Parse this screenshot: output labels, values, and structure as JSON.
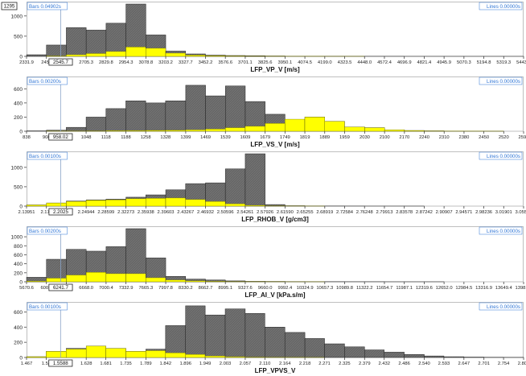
{
  "colors": {
    "bar_total": "#666666",
    "bar_highlight": "#ffff00",
    "info_text": "#2e75d6",
    "frame": "#bfbfbf",
    "cursor_line": "#8aa4c8"
  },
  "chart_data": [
    {
      "type": "bar",
      "title": "LFP_VP_V [m/s]",
      "xlabel": "LFP_VP_V [m/s]",
      "bars_label": "Bars 0.04902s",
      "lines_label": "Lines 0.00000s",
      "cursor_label": "2545.7",
      "cursor_x": 2545.7,
      "count_label": "1295",
      "yticks": [
        "0",
        "500",
        "1000"
      ],
      "ylim": [
        0,
        1295
      ],
      "xlim": [
        2331.9,
        5443.7
      ],
      "xticks": [
        "2331.9",
        "2456",
        "2705.3",
        "2829.8",
        "2954.3",
        "3078.8",
        "3203.2",
        "3327.7",
        "3452.2",
        "3576.6",
        "3701.1",
        "3825.6",
        "3950.1",
        "4074.5",
        "4199.0",
        "4323.5",
        "4448.0",
        "4572.4",
        "4696.9",
        "4821.4",
        "4945.9",
        "5070.3",
        "5194.8",
        "5319.3",
        "5443.7"
      ],
      "tick_values": [
        2331.9,
        2456.3,
        2705.3,
        2829.8,
        2954.3,
        3078.8,
        3203.2,
        3327.7,
        3452.2,
        3576.6,
        3701.1,
        3825.6,
        3950.1,
        4074.5,
        4199.0,
        4323.5,
        4448.0,
        4572.4,
        4696.9,
        4821.4,
        4945.9,
        5070.3,
        5194.8,
        5319.3,
        5443.7
      ],
      "bin_edges": [
        2331.9,
        2456.3,
        2580.8,
        2705.3,
        2829.8,
        2954.3,
        3078.8,
        3203.2,
        3327.7,
        3452.2,
        3576.6,
        3701.1,
        3825.6,
        3950.1,
        4074.5,
        4199.0,
        4323.5,
        4448.0,
        4572.4,
        4696.9,
        4821.4,
        4945.9,
        5070.3,
        5194.8,
        5319.3,
        5443.7
      ],
      "series": [
        {
          "name": "",
          "values": [
            40,
            280,
            710,
            650,
            820,
            1295,
            530,
            130,
            60,
            30,
            20,
            15,
            10,
            5,
            5,
            4,
            3,
            2,
            2,
            1,
            1,
            1,
            1,
            1,
            1
          ]
        },
        {
          "name": "",
          "values": [
            0,
            10,
            40,
            70,
            120,
            230,
            200,
            80,
            30,
            15,
            10,
            5,
            4,
            2,
            2,
            1,
            1,
            0,
            0,
            0,
            0,
            0,
            0,
            0,
            0
          ]
        }
      ]
    },
    {
      "type": "bar",
      "title": "LFP_VS_V [m/s]",
      "xlabel": "LFP_VS_V [m/s]",
      "bars_label": "Bars 0.00200s",
      "lines_label": "Lines 0.00000s",
      "cursor_label": "958.02",
      "cursor_x": 958.02,
      "yticks": [
        "0",
        "200",
        "400",
        "600"
      ],
      "ylim": [
        0,
        740
      ],
      "xlim": [
        838,
        2590
      ],
      "xticks": [
        "838",
        "908",
        "1048",
        "1118",
        "1188",
        "1258",
        "1328",
        "1399",
        "1469",
        "1539",
        "1609",
        "1679",
        "1749",
        "1819",
        "1889",
        "1959",
        "2030",
        "2100",
        "2170",
        "2240",
        "2310",
        "2380",
        "2450",
        "2520",
        "2590"
      ],
      "tick_values": [
        838,
        908,
        1048,
        1118,
        1188,
        1258,
        1328,
        1399,
        1469,
        1539,
        1609,
        1679,
        1749,
        1819,
        1889,
        1959,
        2030,
        2100,
        2170,
        2240,
        2310,
        2380,
        2450,
        2520,
        2590
      ],
      "bin_edges": [
        838,
        908,
        978,
        1048,
        1118,
        1188,
        1258,
        1328,
        1399,
        1469,
        1539,
        1609,
        1679,
        1749,
        1819,
        1889,
        1959,
        2030,
        2100,
        2170,
        2240,
        2310,
        2380,
        2450,
        2520,
        2590
      ],
      "series": [
        {
          "name": "",
          "values": [
            5,
            15,
            55,
            200,
            320,
            430,
            400,
            430,
            650,
            500,
            640,
            420,
            240,
            130,
            200,
            140,
            60,
            50,
            20,
            10,
            5,
            3,
            2,
            1,
            0
          ]
        },
        {
          "name": "",
          "values": [
            0,
            2,
            3,
            5,
            8,
            10,
            12,
            15,
            20,
            30,
            50,
            70,
            110,
            170,
            200,
            140,
            60,
            50,
            20,
            10,
            5,
            3,
            2,
            1,
            0
          ]
        }
      ]
    },
    {
      "type": "bar",
      "title": "LFP_RHOB_V [g/cm3]",
      "xlabel": "LFP_RHOB_V [g/cm3]",
      "bars_label": "Bars 0.00100s",
      "lines_label": "Lines 0.00000s",
      "cursor_label": "2.2025",
      "cursor_x": 2.2025,
      "yticks": [
        "0",
        "500",
        "1000"
      ],
      "ylim": [
        0,
        1350
      ],
      "xlim": [
        2.13951,
        3.05565
      ],
      "xticks": [
        "2.13951",
        "2.176",
        "80",
        "2.24944",
        "2.28599",
        "2.32273",
        "2.35938",
        "2.39603",
        "2.43267",
        "2.46932",
        "2.50596",
        "2.54261",
        "2.57926",
        "2.61590",
        "2.65255",
        "2.68919",
        "2.72584",
        "2.76248",
        "2.79913",
        "2.83578",
        "2.87242",
        "2.90907",
        "2.94571",
        "2.98236",
        "3.01901",
        "3.05565"
      ],
      "tick_values": [
        2.13951,
        2.17616,
        2.2128,
        2.24944,
        2.28599,
        2.32273,
        2.35938,
        2.39603,
        2.43267,
        2.46932,
        2.50596,
        2.54261,
        2.57926,
        2.6159,
        2.65255,
        2.68919,
        2.72584,
        2.76248,
        2.79913,
        2.83578,
        2.87242,
        2.90907,
        2.94571,
        2.98236,
        3.01901,
        3.05565
      ],
      "bin_edges": [
        2.13951,
        2.17616,
        2.2128,
        2.24944,
        2.28599,
        2.32273,
        2.35938,
        2.39603,
        2.43267,
        2.46932,
        2.50596,
        2.54261,
        2.57926,
        2.6159,
        2.65255,
        2.68919,
        2.72584,
        2.76248,
        2.79913,
        2.83578,
        2.87242,
        2.90907,
        2.94571,
        2.98236,
        3.01901,
        3.05565
      ],
      "series": [
        {
          "name": "",
          "values": [
            30,
            80,
            130,
            160,
            180,
            230,
            290,
            420,
            580,
            600,
            960,
            1350,
            40,
            10,
            5,
            3,
            2,
            1,
            1,
            1,
            0,
            0,
            0,
            0,
            0
          ]
        },
        {
          "name": "",
          "values": [
            30,
            80,
            120,
            150,
            160,
            190,
            200,
            210,
            170,
            120,
            60,
            20,
            5,
            2,
            1,
            0,
            0,
            0,
            0,
            0,
            0,
            0,
            0,
            0,
            0
          ]
        }
      ]
    },
    {
      "type": "bar",
      "title": "LFP_AI_V [kPa.s/m]",
      "xlabel": "LFP_AI_V [kPa.s/m]",
      "bars_label": "Bars 0.00200s",
      "lines_label": "Lines 0.00000s",
      "cursor_label": "6241.7",
      "cursor_x": 6241.7,
      "yticks": [
        "0",
        "200",
        "400",
        "600",
        "800",
        "1000"
      ],
      "ylim": [
        0,
        1180
      ],
      "xlim": [
        5670.6,
        13981.8
      ],
      "xticks": [
        "5670.6",
        "6003.",
        "5",
        "6668.0",
        "7000.4",
        "7332.9",
        "7665.3",
        "7997.8",
        "8330.2",
        "8662.7",
        "8995.1",
        "9327.6",
        "9660.0",
        "9992.4",
        "10324.9",
        "10657.3",
        "10989.8",
        "11322.2",
        "11654.7",
        "11987.1",
        "12319.6",
        "12652.0",
        "12984.5",
        "13316.9",
        "13649.4",
        "13981.8"
      ],
      "tick_values": [
        5670.6,
        6003.1,
        6335.5,
        6668.0,
        7000.4,
        7332.9,
        7665.3,
        7997.8,
        8330.2,
        8662.7,
        8995.1,
        9327.6,
        9660.0,
        9992.4,
        10324.9,
        10657.3,
        10989.8,
        11322.2,
        11654.7,
        11987.1,
        12319.6,
        12652.0,
        12984.5,
        13316.9,
        13649.4,
        13981.8
      ],
      "bin_edges": [
        5670.6,
        6003.1,
        6335.5,
        6668.0,
        7000.4,
        7332.9,
        7665.3,
        7997.8,
        8330.2,
        8662.7,
        8995.1,
        9327.6,
        9660.0,
        9992.4,
        10324.9,
        10657.3,
        10989.8,
        11322.2,
        11654.7,
        11987.1,
        12319.6,
        12652.0,
        12984.5,
        13316.9,
        13649.4,
        13981.8
      ],
      "series": [
        {
          "name": "",
          "values": [
            100,
            500,
            720,
            680,
            780,
            1180,
            530,
            120,
            60,
            40,
            20,
            10,
            8,
            5,
            4,
            3,
            2,
            2,
            1,
            1,
            1,
            0,
            0,
            0,
            0
          ]
        },
        {
          "name": "",
          "values": [
            15,
            80,
            150,
            210,
            180,
            180,
            90,
            40,
            20,
            10,
            5,
            3,
            2,
            1,
            1,
            0,
            0,
            0,
            0,
            0,
            0,
            0,
            0,
            0,
            0
          ]
        }
      ]
    },
    {
      "type": "bar",
      "title": "LFP_VPVS_V",
      "xlabel": "LFP_VPVS_V",
      "bars_label": "Bars 0.00100s",
      "lines_label": "Lines 0.00000s",
      "cursor_label": "1.5588",
      "cursor_x": 1.5588,
      "yticks": [
        "0",
        "200",
        "400",
        "600"
      ],
      "ylim": [
        0,
        700
      ],
      "xlim": [
        1.467,
        2.808
      ],
      "xticks": [
        "1.467",
        "1.52",
        "1.628",
        "1.681",
        "1.735",
        "1.789",
        "1.842",
        "1.896",
        "1.949",
        "2.003",
        "2.057",
        "2.110",
        "2.164",
        "2.218",
        "2.271",
        "2.325",
        "2.379",
        "2.432",
        "2.486",
        "2.540",
        "2.593",
        "2.647",
        "2.701",
        "2.754",
        "2.808"
      ],
      "tick_values": [
        1.467,
        1.52,
        1.628,
        1.681,
        1.735,
        1.789,
        1.842,
        1.896,
        1.949,
        2.003,
        2.057,
        2.11,
        2.164,
        2.218,
        2.271,
        2.325,
        2.379,
        2.432,
        2.486,
        2.54,
        2.593,
        2.647,
        2.701,
        2.754,
        2.808
      ],
      "bin_edges": [
        1.467,
        1.52,
        1.574,
        1.628,
        1.681,
        1.735,
        1.789,
        1.842,
        1.896,
        1.949,
        2.003,
        2.057,
        2.11,
        2.164,
        2.218,
        2.271,
        2.325,
        2.379,
        2.432,
        2.486,
        2.54,
        2.593,
        2.647,
        2.701,
        2.754,
        2.808
      ],
      "series": [
        {
          "name": "",
          "values": [
            10,
            80,
            120,
            150,
            120,
            80,
            110,
            420,
            680,
            560,
            640,
            580,
            400,
            330,
            250,
            180,
            140,
            100,
            70,
            40,
            20,
            10,
            5,
            3,
            2
          ]
        },
        {
          "name": "",
          "values": [
            10,
            80,
            110,
            150,
            120,
            80,
            90,
            60,
            40,
            20,
            10,
            5,
            3,
            2,
            1,
            0,
            0,
            0,
            0,
            0,
            0,
            0,
            0,
            0,
            0
          ]
        }
      ]
    }
  ]
}
